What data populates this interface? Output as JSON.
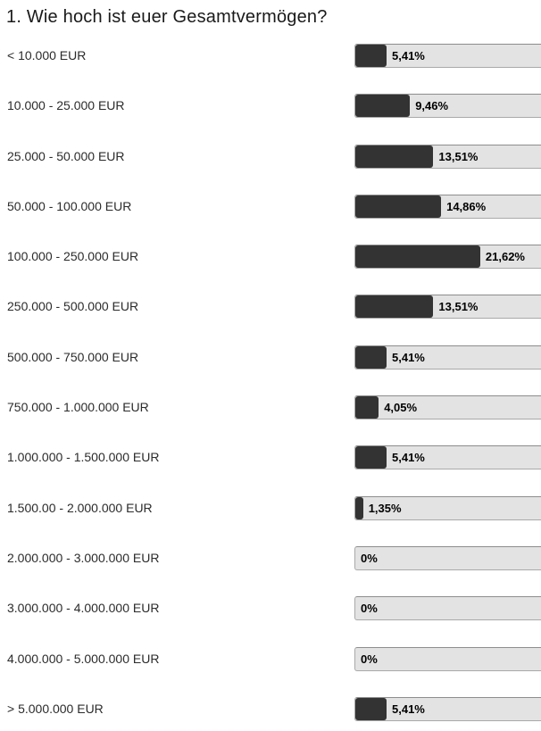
{
  "title": "1. Wie hoch ist euer Gesamtvermögen?",
  "colors": {
    "bar_fill": "#333333",
    "bar_track": "#e3e3e3",
    "bar_border": "#a9a9a9",
    "text": "#1a1a1a"
  },
  "chart_data": {
    "type": "bar",
    "orientation": "horizontal",
    "title": "1. Wie hoch ist euer Gesamtvermögen?",
    "unit": "%",
    "xlim": [
      0,
      100
    ],
    "grid": false,
    "legend": false,
    "categories": [
      "< 10.000 EUR",
      "10.000 - 25.000 EUR",
      "25.000 - 50.000 EUR",
      "50.000 - 100.000 EUR",
      "100.000 - 250.000 EUR",
      "250.000 - 500.000 EUR",
      "500.000 - 750.000 EUR",
      "750.000 - 1.000.000 EUR",
      "1.000.000 - 1.500.000 EUR",
      "1.500.00 - 2.000.000 EUR",
      "2.000.000 - 3.000.000 EUR",
      "3.000.000 - 4.000.000 EUR",
      "4.000.000 - 5.000.000 EUR",
      "> 5.000.000 EUR"
    ],
    "values": [
      5.41,
      9.46,
      13.51,
      14.86,
      21.62,
      13.51,
      5.41,
      4.05,
      5.41,
      1.35,
      0,
      0,
      0,
      5.41
    ],
    "value_labels": [
      "5,41%",
      "9,46%",
      "13,51%",
      "14,86%",
      "21,62%",
      "13,51%",
      "5,41%",
      "4,05%",
      "5,41%",
      "1,35%",
      "0%",
      "0%",
      "0%",
      "5,41%"
    ]
  }
}
